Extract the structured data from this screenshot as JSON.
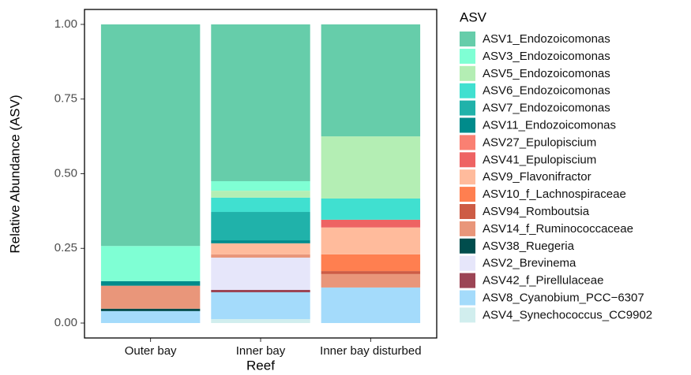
{
  "chart_data": {
    "type": "stacked_bar",
    "x_label": "Reef",
    "y_label": "Relative Abundance (ASV)",
    "legend_title": "ASV",
    "categories": [
      "Outer bay",
      "Inner bay",
      "Inner bay disturbed"
    ],
    "ylim": [
      -0.05,
      1.05
    ],
    "yticks": [
      {
        "value": 0,
        "label": "0.00"
      },
      {
        "value": 0.25,
        "label": "0.25"
      },
      {
        "value": 0.5,
        "label": "0.50"
      },
      {
        "value": 0.75,
        "label": "0.75"
      },
      {
        "value": 1,
        "label": "1.00"
      }
    ],
    "legend_position": "right",
    "series": [
      {
        "name": "ASV1_Endozoicomonas",
        "color": "#66cdaa",
        "values": [
          0.742,
          0.525,
          0.375
        ]
      },
      {
        "name": "ASV3_Endozoicomonas",
        "color": "#7fffd4",
        "values": [
          0.118,
          0.032,
          0
        ]
      },
      {
        "name": "ASV5_Endozoicomonas",
        "color": "#b4eeb4",
        "values": [
          0,
          0.023,
          0.208
        ]
      },
      {
        "name": "ASV6_Endozoicomonas",
        "color": "#40e0d0",
        "values": [
          0,
          0.048,
          0.071
        ]
      },
      {
        "name": "ASV7_Endozoicomonas",
        "color": "#20b2aa",
        "values": [
          0,
          0.095,
          0
        ]
      },
      {
        "name": "ASV11_Endozoicomonas",
        "color": "#008b8b",
        "values": [
          0.015,
          0.01,
          0
        ]
      },
      {
        "name": "ASV27_Epulopiscium",
        "color": "#fa8072",
        "values": [
          0,
          0,
          0
        ]
      },
      {
        "name": "ASV41_Epulopiscium",
        "color": "#ee6363",
        "values": [
          0,
          0,
          0.026
        ]
      },
      {
        "name": "ASV9_Flavonifractor",
        "color": "#ffbb9c",
        "values": [
          0,
          0.037,
          0.09
        ]
      },
      {
        "name": "ASV10_f_Lachnospiraceae",
        "color": "#ff7f50",
        "values": [
          0,
          0,
          0.056
        ]
      },
      {
        "name": "ASV94_Romboutsia",
        "color": "#cd5c45",
        "values": [
          0,
          0,
          0.01
        ]
      },
      {
        "name": "ASV14_f_Ruminococcaceae",
        "color": "#e9967a",
        "values": [
          0.077,
          0.011,
          0.045
        ]
      },
      {
        "name": "ASV38_Ruegeria",
        "color": "#004d4d",
        "values": [
          0.008,
          0,
          0
        ]
      },
      {
        "name": "ASV2_Brevinema",
        "color": "#e6e6fa",
        "values": [
          0,
          0.108,
          0
        ]
      },
      {
        "name": "ASV42_f_Pirellulaceae",
        "color": "#9c4555",
        "values": [
          0,
          0.008,
          0
        ]
      },
      {
        "name": "ASV8_Cyanobium_PCC−6307",
        "color": "#a4dbfb",
        "values": [
          0.04,
          0.09,
          0.119
        ]
      },
      {
        "name": "ASV4_Synechococcus_CC9902",
        "color": "#d1eeee",
        "values": [
          0,
          0.013,
          0
        ]
      }
    ]
  }
}
